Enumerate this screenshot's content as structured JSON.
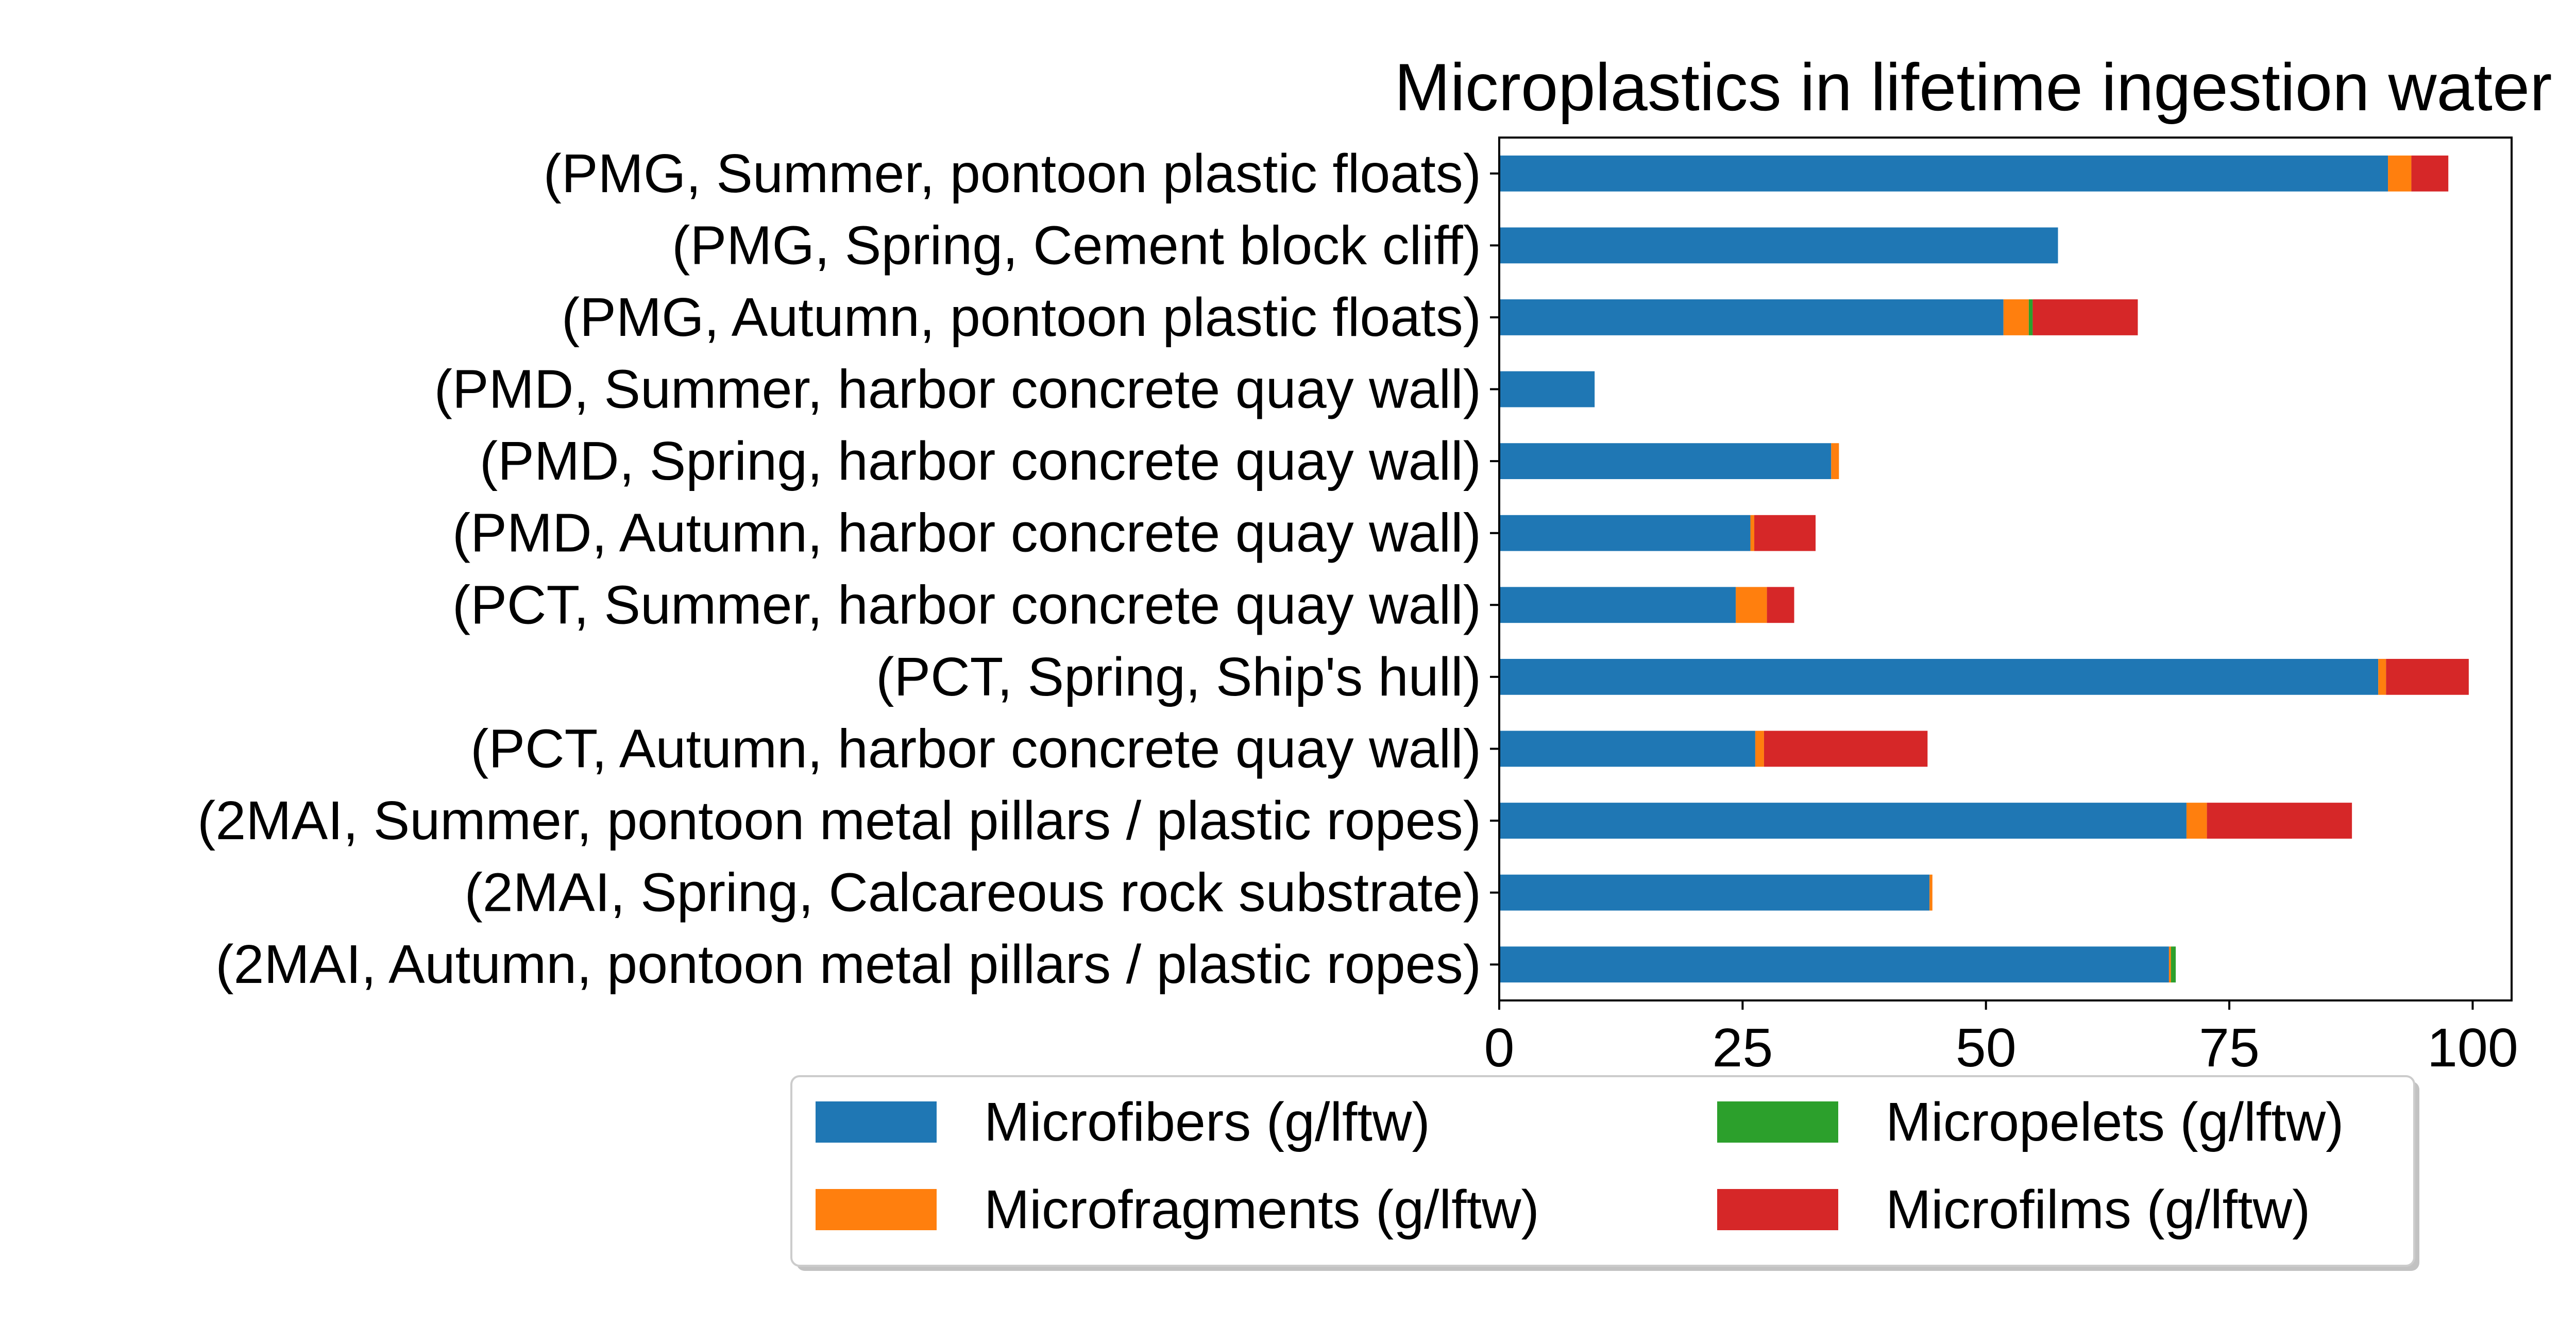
{
  "chart_data": {
    "type": "bar",
    "orientation": "horizontal",
    "stacked": true,
    "title": "Microplastics in lifetime ingestion water",
    "xlabel": "",
    "ylabel": "",
    "xlim": [
      0,
      104
    ],
    "xticks": [
      0,
      25,
      50,
      75,
      100
    ],
    "grid": false,
    "legend_position": "bottom-center",
    "categories": [
      "(PMG, Summer, pontoon plastic floats)",
      "(PMG, Spring, Cement block cliff)",
      "(PMG, Autumn, pontoon plastic floats)",
      "(PMD, Summer, harbor concrete quay wall)",
      "(PMD, Spring, harbor concrete quay wall)",
      "(PMD, Autumn, harbor concrete quay wall)",
      "(PCT, Summer, harbor concrete quay wall)",
      "(PCT, Spring, Ship's hull)",
      "(PCT, Autumn, harbor concrete quay wall)",
      "(2MAI, Summer, pontoon metal pillars / plastic ropes)",
      "(2MAI, Spring, Calcareous rock substrate)",
      "(2MAI, Autumn, pontoon metal pillars / plastic ropes)"
    ],
    "series": [
      {
        "name": "Microfibers (g/lftw)",
        "color": "#1f77b4",
        "values": [
          91.3,
          57.4,
          51.8,
          9.8,
          34.1,
          25.8,
          24.3,
          90.3,
          26.3,
          70.6,
          44.2,
          68.8
        ]
      },
      {
        "name": "Microfragments (g/lftw)",
        "color": "#ff7f0e",
        "values": [
          2.4,
          0,
          2.6,
          0,
          0.8,
          0.4,
          3.2,
          0.8,
          0.9,
          2.1,
          0.3,
          0.2
        ]
      },
      {
        "name": "Micropelets (g/lftw)",
        "color": "#2ca02c",
        "values": [
          0,
          0,
          0.4,
          0,
          0,
          0,
          0,
          0,
          0,
          0,
          0,
          0.5
        ]
      },
      {
        "name": "Microfilms (g/lftw)",
        "color": "#d62728",
        "values": [
          3.8,
          0,
          10.8,
          0,
          0,
          6.3,
          2.8,
          8.5,
          16.8,
          14.9,
          0,
          0
        ]
      }
    ]
  }
}
